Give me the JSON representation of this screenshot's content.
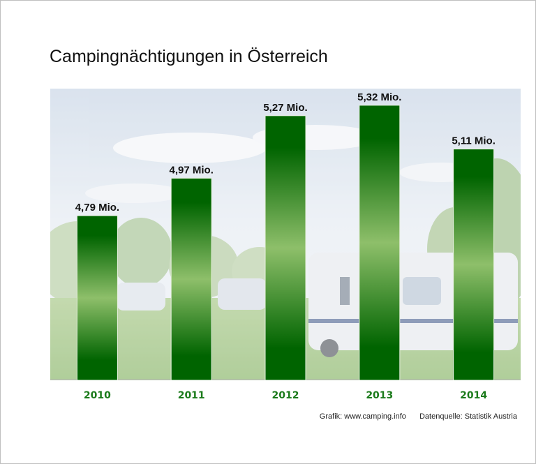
{
  "colors": {
    "bar_dark": "#006400",
    "bar_light": "#8ebf6a",
    "tick_text": "#1a7a1a"
  },
  "chart_data": {
    "type": "bar",
    "title": "Campingnächtigungen in Österreich",
    "categories": [
      "2010",
      "2011",
      "2012",
      "2013",
      "2014"
    ],
    "values": [
      4.79,
      4.97,
      5.27,
      5.32,
      5.11
    ],
    "data_labels": [
      "4,79 Mio.",
      "4,97 Mio.",
      "5,27 Mio.",
      "5,32 Mio.",
      "5,11 Mio."
    ],
    "xlabel": "",
    "ylabel": "",
    "ylim": [
      4.0,
      5.4
    ],
    "grid": false
  },
  "footer": {
    "credit": "Grafik: www.camping.info",
    "source": "Datenquelle: Statistik Austria"
  }
}
